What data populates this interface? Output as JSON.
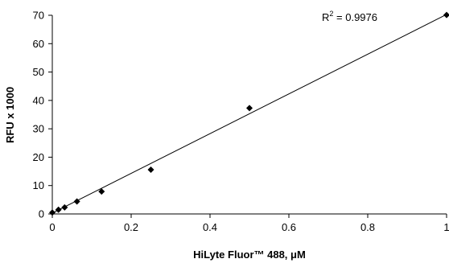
{
  "chart_data": {
    "type": "scatter",
    "xlabel": "HiLyte Fluor™ 488, μM",
    "ylabel": "RFU x 1000",
    "xlim": [
      0,
      1
    ],
    "ylim": [
      0,
      70
    ],
    "x_ticks": [
      0,
      0.2,
      0.4,
      0.6,
      0.8,
      1
    ],
    "x_tick_labels": [
      "0",
      "0.2",
      "0.4",
      "0.6",
      "0.8",
      "1"
    ],
    "y_ticks": [
      0,
      10,
      20,
      30,
      40,
      50,
      60,
      70
    ],
    "y_tick_labels": [
      "0",
      "10",
      "20",
      "30",
      "40",
      "50",
      "60",
      "70"
    ],
    "grid": false,
    "legend": "none",
    "series": [
      {
        "x": [
          0,
          0.0156,
          0.03125,
          0.0625,
          0.125,
          0.25,
          0.5,
          1
        ],
        "y": [
          0.5,
          1.5,
          2.3,
          4.4,
          7.9,
          15.6,
          37.3,
          70.1
        ]
      }
    ],
    "trendline": {
      "type": "linear",
      "x": [
        0,
        1
      ],
      "y": [
        0.3,
        70.3
      ]
    },
    "annotation": {
      "base": "R",
      "superscript": "2",
      "text": " = 0.9976"
    },
    "marker_color": "#000000",
    "line_color": "#000000"
  }
}
